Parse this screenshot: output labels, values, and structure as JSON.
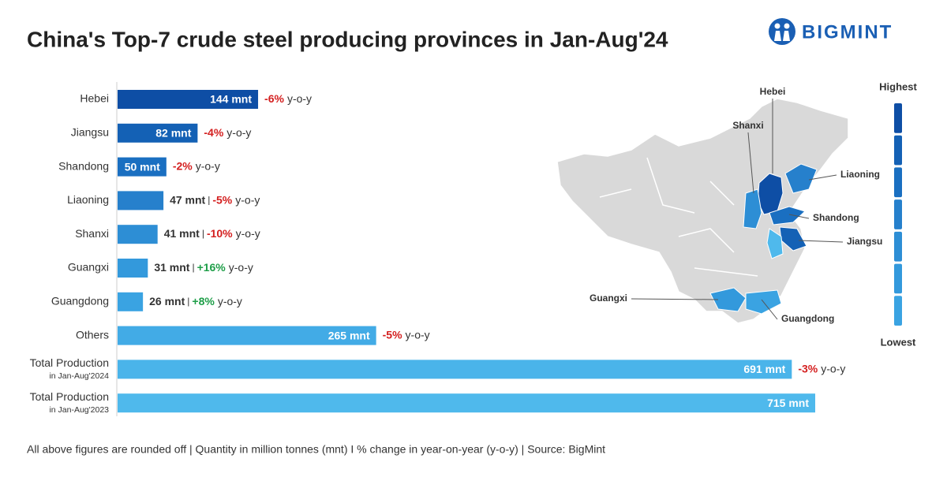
{
  "brand": "BIGMINT",
  "chart_data": {
    "type": "bar",
    "orientation": "horizontal",
    "title": "China's Top-7 crude steel producing provinces in Jan-Aug'24",
    "categories": [
      "Hebei",
      "Jiangsu",
      "Shandong",
      "Liaoning",
      "Shanxi",
      "Guangxi",
      "Guangdong",
      "Others",
      "Total Production",
      "Total Production"
    ],
    "category_notes": [
      null,
      null,
      null,
      null,
      null,
      null,
      null,
      null,
      "in Jan-Aug'2024",
      "in Jan-Aug'2023"
    ],
    "values": [
      144,
      82,
      50,
      47,
      41,
      31,
      26,
      265,
      691,
      715
    ],
    "value_labels": [
      "144 mnt",
      "82 mnt",
      "50 mnt",
      "47 mnt",
      "41 mnt",
      "31 mnt",
      "26 mnt",
      "265 mnt",
      "691 mnt",
      "715 mnt"
    ],
    "colors": [
      "#0e4ea5",
      "#1461b5",
      "#1a6fc1",
      "#2680cc",
      "#2d8ed5",
      "#3399dc",
      "#3aa3e2",
      "#42abe6",
      "#4ab4ea",
      "#4fb9ec"
    ],
    "changes": [
      -6,
      -4,
      -2,
      -5,
      -10,
      16,
      8,
      -5,
      -3,
      null
    ],
    "change_labels": [
      "-6%",
      "-4%",
      "-2%",
      "-5%",
      "-10%",
      "+16%",
      "+8%",
      "-5%",
      "-3%",
      null
    ],
    "change_suffix": "y-o-y",
    "separator": "|",
    "footnote": "All above figures are rounded off | Quantity in million tonnes (mnt)  I  % change in year-on-year (y-o-y) | Source: BigMint"
  },
  "map": {
    "labels": [
      "Hebei",
      "Shanxi",
      "Liaoning",
      "Shandong",
      "Jiangsu",
      "Guangxi",
      "Guangdong"
    ],
    "legend_high": "Highest",
    "legend_low": "Lowest"
  }
}
